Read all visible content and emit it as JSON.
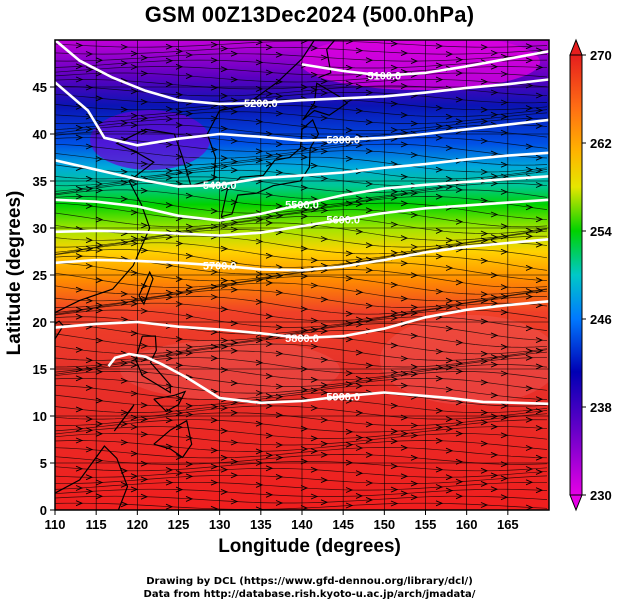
{
  "title": "GSM 00Z13Dec2024 (500.0hPa)",
  "chart_data": {
    "type": "heatmap",
    "title": "GSM 00Z13Dec2024 (500.0hPa)",
    "xlabel": "Longitude (degrees)",
    "ylabel": "Latitude  (degrees)",
    "xlim": [
      110,
      170
    ],
    "ylim": [
      0,
      50
    ],
    "x_ticks": [
      "110",
      "115",
      "120",
      "125",
      "130",
      "135",
      "140",
      "145",
      "150",
      "155",
      "160",
      "165"
    ],
    "y_ticks": [
      "0",
      "5",
      "10",
      "15",
      "20",
      "25",
      "30",
      "35",
      "40",
      "45"
    ],
    "grid": true,
    "colorbar": {
      "ticks": [
        "270",
        "262",
        "254",
        "246",
        "238",
        "230"
      ],
      "range": [
        230,
        270
      ],
      "colors": [
        "#d400d4",
        "#6a00c8",
        "#0000b4",
        "#0070ff",
        "#00c8c8",
        "#00d200",
        "#b4e600",
        "#ffd200",
        "#ff7800",
        "#e61e1e"
      ]
    },
    "contours": [
      {
        "value": 5100,
        "label": "5100.0",
        "lon": [
          140,
          145,
          150,
          155,
          160,
          165,
          170
        ],
        "lat": [
          47.4,
          46.7,
          46.2,
          46.5,
          47.2,
          48.0,
          48.8
        ]
      },
      {
        "value": 5200,
        "label": "5200.0",
        "lon": [
          110,
          113,
          117,
          121,
          125,
          130,
          135,
          140,
          145,
          150,
          155,
          160,
          165,
          170
        ],
        "lat": [
          50,
          47.8,
          46.0,
          44.6,
          43.6,
          43.2,
          43.3,
          43.6,
          43.8,
          44.0,
          44.4,
          44.9,
          45.3,
          45.8
        ]
      },
      {
        "value": 5300,
        "label": "5300.0",
        "lon": [
          110,
          114,
          116,
          120,
          125,
          130,
          135,
          140,
          145,
          150,
          155,
          160,
          165,
          170
        ],
        "lat": [
          45.5,
          42.5,
          39.6,
          38.8,
          39.5,
          40.0,
          39.7,
          39.3,
          39.4,
          39.6,
          40.0,
          40.5,
          41.0,
          41.5
        ]
      },
      {
        "value": 5400,
        "label": "5400.0",
        "lon": [
          110,
          115,
          120,
          125,
          130,
          135,
          140,
          145,
          150,
          155,
          160,
          165,
          170
        ],
        "lat": [
          37.2,
          36.2,
          35.2,
          34.4,
          34.6,
          35.3,
          35.6,
          35.9,
          36.4,
          36.8,
          37.3,
          37.7,
          38.0
        ]
      },
      {
        "value": 5500,
        "label": "5500.0",
        "lon": [
          110,
          115,
          120,
          125,
          130,
          135,
          140,
          145,
          150,
          155,
          160,
          165,
          170
        ],
        "lat": [
          33.0,
          32.8,
          32.3,
          31.3,
          30.8,
          31.5,
          32.5,
          33.5,
          34.2,
          34.6,
          34.9,
          35.2,
          35.5
        ]
      },
      {
        "value": 5600,
        "label": "5600.0",
        "lon": [
          110,
          115,
          120,
          125,
          130,
          135,
          140,
          145,
          150,
          155,
          160,
          165,
          170
        ],
        "lat": [
          29.6,
          29.7,
          29.6,
          29.4,
          29.2,
          29.5,
          30.2,
          30.9,
          31.6,
          32.1,
          32.4,
          32.7,
          33.0
        ]
      },
      {
        "value": 5700,
        "label": "5700.0",
        "lon": [
          110,
          115,
          120,
          125,
          130,
          135,
          140,
          145,
          150,
          155,
          160,
          165,
          170
        ],
        "lat": [
          26.3,
          26.6,
          26.5,
          26.3,
          26.0,
          25.6,
          25.5,
          25.9,
          26.6,
          27.4,
          28.0,
          28.4,
          28.8
        ]
      },
      {
        "value": 5800,
        "label": "5800.0",
        "lon": [
          110,
          115,
          120,
          125,
          130,
          135,
          140,
          145,
          150,
          155,
          160,
          165,
          170
        ],
        "lat": [
          19.4,
          19.8,
          20.0,
          19.5,
          19.2,
          18.8,
          18.3,
          18.5,
          19.3,
          20.5,
          21.3,
          21.8,
          22.2
        ]
      },
      {
        "value": 5900,
        "label": "5900.0",
        "lon": [
          116.5,
          117.3,
          119,
          121,
          123,
          126,
          130,
          135,
          140,
          145,
          150,
          154,
          158,
          162,
          166,
          170
        ],
        "lat": [
          15.3,
          16.2,
          16.6,
          16.3,
          15.5,
          14.1,
          11.9,
          11.4,
          11.6,
          12.1,
          12.5,
          12.2,
          11.9,
          11.5,
          11.4,
          11.3
        ]
      }
    ]
  },
  "credits": {
    "line1": "Drawing by DCL (https://www.gfd-dennou.org/library/dcl/)",
    "line2": "Data from http://database.rish.kyoto-u.ac.jp/arch/jmadata/"
  }
}
